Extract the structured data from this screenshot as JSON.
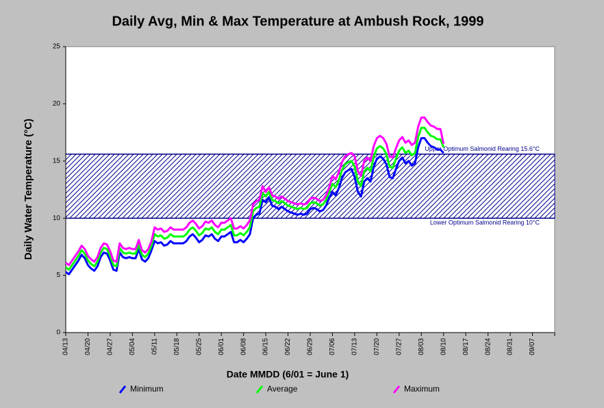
{
  "chart_data": {
    "type": "line",
    "title": "Daily Avg, Min & Max Temperature at Ambush Rock, 1999",
    "xlabel": "Date MMDD (6/01 = June 1)",
    "ylabel": "Daily Water Temperature (°C)",
    "categories": [
      "04/13",
      null,
      null,
      null,
      null,
      null,
      null,
      "04/20",
      null,
      null,
      null,
      null,
      null,
      null,
      "04/27",
      null,
      null,
      null,
      null,
      null,
      null,
      "05/04",
      null,
      null,
      null,
      null,
      null,
      null,
      "05/11",
      null,
      null,
      null,
      null,
      null,
      null,
      "05/18",
      null,
      null,
      null,
      null,
      null,
      null,
      "05/25",
      null,
      null,
      null,
      null,
      null,
      null,
      "06/01",
      null,
      null,
      null,
      null,
      null,
      null,
      "06/08",
      null,
      null,
      null,
      null,
      null,
      null,
      "06/15",
      null,
      null,
      null,
      null,
      null,
      null,
      "06/22",
      null,
      null,
      null,
      null,
      null,
      null,
      "06/29",
      null,
      null,
      null,
      null,
      null,
      null,
      "07/06",
      null,
      null,
      null,
      null,
      null,
      null,
      "07/13",
      null,
      null,
      null,
      null,
      null,
      null,
      "07/20",
      null,
      null,
      null,
      null,
      null,
      null,
      "07/27",
      null,
      null,
      null,
      null,
      null,
      null,
      "08/03",
      null,
      null,
      null,
      null,
      null,
      null,
      "08/10",
      null,
      null,
      null,
      null,
      null,
      null,
      "08/17",
      null,
      null,
      null,
      null,
      null,
      null,
      "08/24",
      null,
      null,
      null,
      null,
      null,
      null,
      "08/31",
      null,
      null,
      null,
      null,
      null,
      null,
      "09/07",
      null,
      null,
      null,
      null,
      null,
      null,
      null
    ],
    "series": [
      {
        "name": "Minimum",
        "color": "#0000ff",
        "values": [
          5.3,
          5.1,
          5.5,
          5.9,
          6.3,
          6.8,
          6.5,
          5.9,
          5.6,
          5.4,
          5.8,
          6.6,
          7.0,
          6.9,
          6.3,
          5.5,
          5.4,
          7.0,
          6.6,
          6.5,
          6.6,
          6.5,
          6.5,
          7.3,
          6.4,
          6.2,
          6.5,
          7.2,
          8.0,
          7.8,
          7.9,
          7.6,
          7.7,
          8.0,
          7.8,
          7.8,
          7.8,
          7.8,
          8.0,
          8.4,
          8.6,
          8.3,
          7.9,
          8.1,
          8.5,
          8.4,
          8.6,
          8.2,
          8.0,
          8.4,
          8.4,
          8.6,
          8.8,
          7.9,
          7.9,
          8.1,
          7.9,
          8.2,
          8.6,
          10.0,
          10.3,
          10.4,
          11.6,
          11.4,
          11.8,
          11.1,
          11.0,
          10.8,
          11.0,
          10.8,
          10.6,
          10.5,
          10.4,
          10.3,
          10.4,
          10.3,
          10.4,
          10.8,
          10.9,
          10.8,
          10.6,
          10.7,
          11.1,
          11.8,
          12.3,
          12.0,
          12.6,
          13.5,
          14.0,
          14.2,
          14.3,
          13.6,
          12.3,
          11.9,
          13.2,
          13.5,
          13.2,
          14.5,
          15.2,
          15.4,
          15.2,
          14.7,
          13.6,
          13.5,
          14.3,
          15.0,
          15.3,
          14.8,
          15.0,
          14.6,
          14.8,
          16.2,
          17.0,
          17.0,
          16.6,
          16.3,
          16.2,
          16.0,
          16.0,
          15.7,
          null,
          null,
          null,
          null,
          null,
          null,
          null,
          null,
          null,
          null,
          null,
          null,
          null,
          null,
          null,
          null,
          null,
          null,
          null,
          null,
          null,
          null,
          null,
          null,
          null,
          null,
          null,
          null,
          null,
          null,
          null,
          null,
          null,
          null,
          null
        ]
      },
      {
        "name": "Average",
        "color": "#00ff00",
        "values": [
          5.7,
          5.5,
          5.9,
          6.3,
          6.7,
          7.2,
          6.9,
          6.3,
          6.0,
          5.8,
          6.2,
          7.0,
          7.4,
          7.3,
          6.7,
          5.9,
          5.8,
          7.4,
          7.0,
          6.9,
          7.0,
          6.9,
          6.9,
          7.7,
          6.8,
          6.6,
          6.9,
          7.6,
          8.6,
          8.4,
          8.5,
          8.2,
          8.3,
          8.6,
          8.4,
          8.4,
          8.4,
          8.4,
          8.6,
          9.0,
          9.2,
          8.9,
          8.5,
          8.7,
          9.1,
          9.0,
          9.2,
          8.8,
          8.6,
          9.0,
          9.0,
          9.2,
          9.4,
          8.5,
          8.5,
          8.7,
          8.5,
          8.8,
          9.2,
          10.6,
          10.9,
          11.0,
          12.2,
          11.9,
          12.3,
          11.6,
          11.5,
          11.3,
          11.5,
          11.3,
          11.1,
          11.0,
          10.9,
          10.8,
          10.9,
          10.8,
          10.9,
          11.3,
          11.4,
          11.3,
          11.1,
          11.2,
          11.6,
          12.3,
          13.0,
          12.7,
          13.3,
          14.2,
          14.7,
          14.9,
          15.0,
          14.5,
          13.2,
          12.8,
          14.1,
          14.4,
          14.1,
          15.4,
          16.1,
          16.3,
          16.1,
          15.6,
          14.5,
          14.4,
          15.2,
          15.9,
          16.2,
          15.7,
          15.9,
          15.5,
          15.7,
          17.1,
          17.9,
          17.9,
          17.5,
          17.2,
          17.1,
          16.9,
          16.9,
          16.2,
          null,
          null,
          null,
          null,
          null,
          null,
          null,
          null,
          null,
          null,
          null,
          null,
          null,
          null,
          null,
          null,
          null,
          null,
          null,
          null,
          null,
          null,
          null,
          null,
          null,
          null,
          null,
          null,
          null,
          null,
          null,
          null,
          null,
          null,
          null
        ]
      },
      {
        "name": "Maximum",
        "color": "#ff00ff",
        "values": [
          6.1,
          5.9,
          6.3,
          6.7,
          7.1,
          7.6,
          7.3,
          6.7,
          6.4,
          6.2,
          6.6,
          7.4,
          7.8,
          7.7,
          7.1,
          6.3,
          6.2,
          7.8,
          7.4,
          7.3,
          7.4,
          7.3,
          7.3,
          8.1,
          7.2,
          7.0,
          7.3,
          8.0,
          9.2,
          9.0,
          9.1,
          8.8,
          8.9,
          9.2,
          9.0,
          9.0,
          9.0,
          9.0,
          9.2,
          9.6,
          9.8,
          9.5,
          9.1,
          9.3,
          9.7,
          9.6,
          9.8,
          9.4,
          9.2,
          9.6,
          9.6,
          9.8,
          10.0,
          9.1,
          9.1,
          9.3,
          9.1,
          9.4,
          9.8,
          11.2,
          11.5,
          11.6,
          12.8,
          12.3,
          12.7,
          12.0,
          11.9,
          11.7,
          11.9,
          11.7,
          11.5,
          11.4,
          11.3,
          11.2,
          11.3,
          11.2,
          11.3,
          11.7,
          11.8,
          11.7,
          11.5,
          11.6,
          12.0,
          12.7,
          13.7,
          13.4,
          14.0,
          14.9,
          15.4,
          15.6,
          15.7,
          15.4,
          14.1,
          13.7,
          15.0,
          15.3,
          15.0,
          16.3,
          17.0,
          17.2,
          17.0,
          16.5,
          15.4,
          15.3,
          16.1,
          16.8,
          17.1,
          16.6,
          16.8,
          16.4,
          16.6,
          18.0,
          18.8,
          18.8,
          18.4,
          18.1,
          18.0,
          17.8,
          17.8,
          16.5,
          null,
          null,
          null,
          null,
          null,
          null,
          null,
          null,
          null,
          null,
          null,
          null,
          null,
          null,
          null,
          null,
          null,
          null,
          null,
          null,
          null,
          null,
          null,
          null,
          null,
          null,
          null,
          null,
          null,
          null,
          null,
          null,
          null,
          null,
          null
        ]
      }
    ],
    "band": {
      "lower": 10,
      "upper": 15.6,
      "color": "#00008b",
      "lower_label": "Lower Optimum Salmonid Rearing 10°C",
      "upper_label": "Upper Optimum Salmonid Rearing 15.6°C"
    },
    "ylim": [
      0,
      25
    ],
    "yticks": [
      0,
      5,
      10,
      15,
      20,
      25
    ],
    "grid": false,
    "legend": "bottom"
  }
}
